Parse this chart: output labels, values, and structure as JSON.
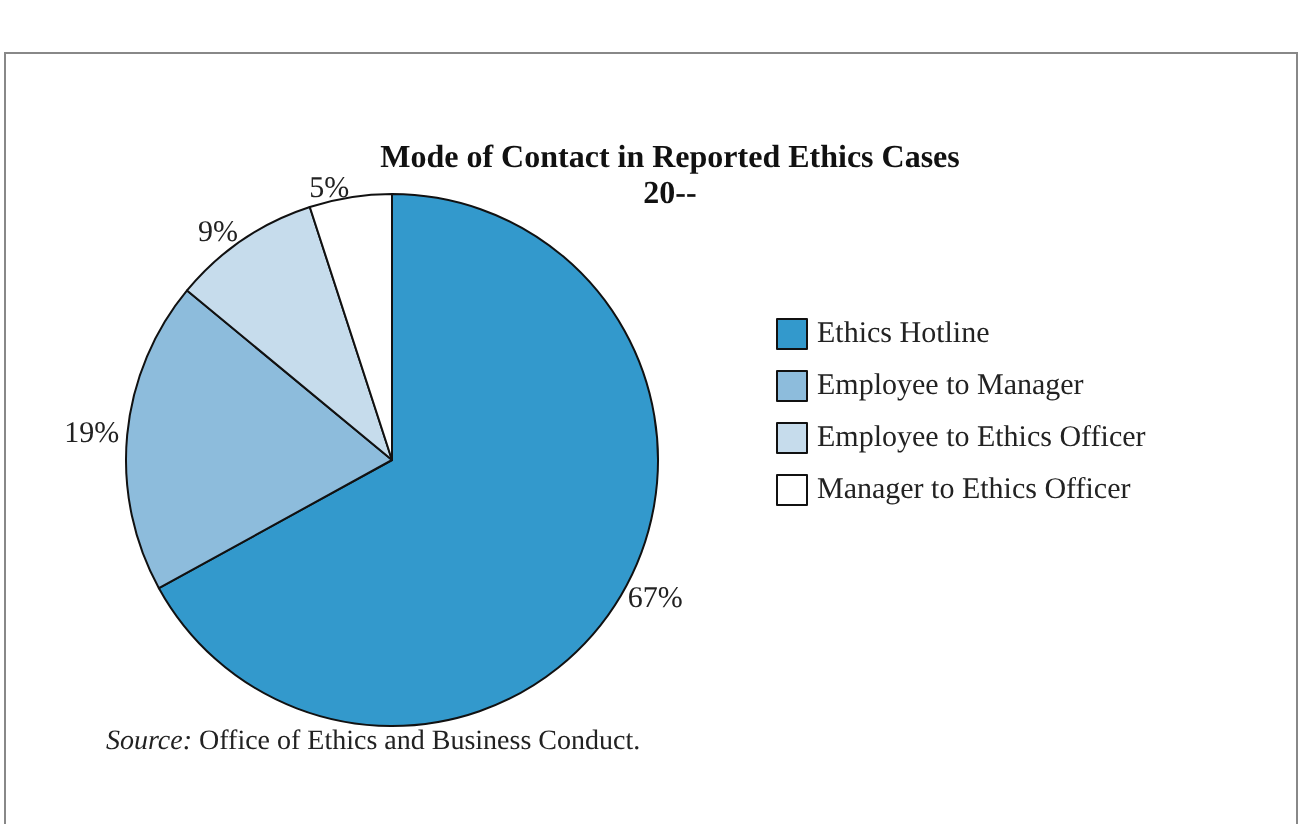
{
  "chart_data": {
    "type": "pie",
    "title": "Mode of Contact in Reported Ethics Cases",
    "subtitle": "20--",
    "categories": [
      "Ethics Hotline",
      "Employee to Manager",
      "Employee to Ethics Officer",
      "Manager to Ethics Officer"
    ],
    "values": [
      67,
      19,
      9,
      5
    ],
    "value_labels": [
      "67%",
      "19%",
      "9%",
      "5%"
    ],
    "colors": [
      "#3399cc",
      "#8dbcdc",
      "#c6dcec",
      "#ffffff"
    ],
    "legend": "right",
    "annotations": [
      "Source: Office of Ethics and Business Conduct."
    ]
  }
}
